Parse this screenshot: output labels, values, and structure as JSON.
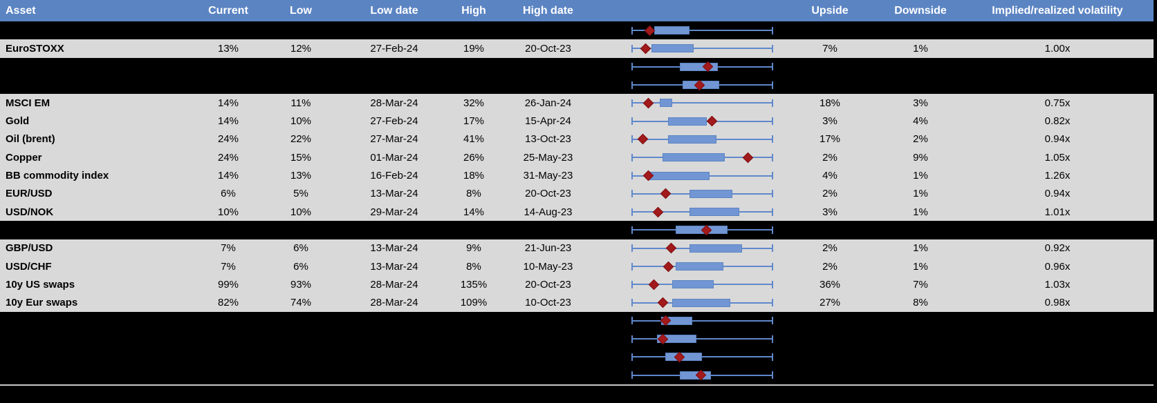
{
  "colors": {
    "header_bg": "#5b84c2",
    "header_text": "#ffffff",
    "row_bg": "#d9d9d9",
    "hidden_row_bg": "#000000",
    "box_fill": "#7296d3",
    "box_border": "#5b84c2",
    "whisker": "#5f88cc",
    "diamond": "#a21a1c",
    "diamond_border": "#7c1012",
    "divider": "#c8c8c8"
  },
  "chart_data": {
    "type": "table",
    "title": "Asset implied volatility: current vs 12m low/high with box-whisker range",
    "columns": [
      "Asset",
      "Current",
      "Low",
      "Low date",
      "High",
      "High date",
      "Upside",
      "Downside",
      "Implied/realized volatility"
    ],
    "boxplot_units": "relative position 0-1 along the whisker span (no numeric axis shown in image)",
    "rows": [
      {
        "kind": "hidden",
        "boxplot": {
          "whisker_low": 0,
          "box_q1": 0.16,
          "box_q3": 0.41,
          "whisker_high": 1,
          "marker": 0.13
        }
      },
      {
        "kind": "data",
        "asset": "EuroSTOXX",
        "current": "13%",
        "low": "12%",
        "low_date": "27-Feb-24",
        "high": "19%",
        "high_date": "20-Oct-23",
        "upside": "7%",
        "downside": "1%",
        "impl_real": "1.00x",
        "boxplot": {
          "whisker_low": 0,
          "box_q1": 0.14,
          "box_q3": 0.44,
          "whisker_high": 1,
          "marker": 0.1
        }
      },
      {
        "kind": "hidden",
        "boxplot": {
          "whisker_low": 0,
          "box_q1": 0.34,
          "box_q3": 0.61,
          "whisker_high": 1,
          "marker": 0.54
        }
      },
      {
        "kind": "hidden",
        "boxplot": {
          "whisker_low": 0,
          "box_q1": 0.36,
          "box_q3": 0.62,
          "whisker_high": 1,
          "marker": 0.48
        }
      },
      {
        "kind": "data",
        "asset": "MSCI EM",
        "current": "14%",
        "low": "11%",
        "low_date": "28-Mar-24",
        "high": "32%",
        "high_date": "26-Jan-24",
        "upside": "18%",
        "downside": "3%",
        "impl_real": "0.75x",
        "boxplot": {
          "whisker_low": 0,
          "box_q1": 0.2,
          "box_q3": 0.29,
          "whisker_high": 1,
          "marker": 0.12
        }
      },
      {
        "kind": "data",
        "asset": "Gold",
        "current": "14%",
        "low": "10%",
        "low_date": "27-Feb-24",
        "high": "17%",
        "high_date": "15-Apr-24",
        "upside": "3%",
        "downside": "4%",
        "impl_real": "0.82x",
        "boxplot": {
          "whisker_low": 0,
          "box_q1": 0.26,
          "box_q3": 0.53,
          "whisker_high": 1,
          "marker": 0.57
        }
      },
      {
        "kind": "data",
        "asset": "Oil (brent)",
        "current": "24%",
        "low": "22%",
        "low_date": "27-Mar-24",
        "high": "41%",
        "high_date": "13-Oct-23",
        "upside": "17%",
        "downside": "2%",
        "impl_real": "0.94x",
        "boxplot": {
          "whisker_low": 0,
          "box_q1": 0.26,
          "box_q3": 0.6,
          "whisker_high": 1,
          "marker": 0.08
        }
      },
      {
        "kind": "data",
        "asset": "Copper",
        "current": "24%",
        "low": "15%",
        "low_date": "01-Mar-24",
        "high": "26%",
        "high_date": "25-May-23",
        "upside": "2%",
        "downside": "9%",
        "impl_real": "1.05x",
        "boxplot": {
          "whisker_low": 0,
          "box_q1": 0.22,
          "box_q3": 0.66,
          "whisker_high": 1,
          "marker": 0.82
        }
      },
      {
        "kind": "data",
        "asset": "BB commodity index",
        "current": "14%",
        "low": "13%",
        "low_date": "16-Feb-24",
        "high": "18%",
        "high_date": "31-May-23",
        "upside": "4%",
        "downside": "1%",
        "impl_real": "1.26x",
        "boxplot": {
          "whisker_low": 0,
          "box_q1": 0.12,
          "box_q3": 0.55,
          "whisker_high": 1,
          "marker": 0.12
        }
      },
      {
        "kind": "data",
        "asset": "EUR/USD",
        "current": "6%",
        "low": "5%",
        "low_date": "13-Mar-24",
        "high": "8%",
        "high_date": "20-Oct-23",
        "upside": "2%",
        "downside": "1%",
        "impl_real": "0.94x",
        "boxplot": {
          "whisker_low": 0,
          "box_q1": 0.41,
          "box_q3": 0.71,
          "whisker_high": 1,
          "marker": 0.24
        }
      },
      {
        "kind": "data",
        "asset": "USD/NOK",
        "current": "10%",
        "low": "10%",
        "low_date": "29-Mar-24",
        "high": "14%",
        "high_date": "14-Aug-23",
        "upside": "3%",
        "downside": "1%",
        "impl_real": "1.01x",
        "boxplot": {
          "whisker_low": 0,
          "box_q1": 0.41,
          "box_q3": 0.76,
          "whisker_high": 1,
          "marker": 0.19
        }
      },
      {
        "kind": "hidden",
        "boxplot": {
          "whisker_low": 0,
          "box_q1": 0.31,
          "box_q3": 0.68,
          "whisker_high": 1,
          "marker": 0.53
        }
      },
      {
        "kind": "data",
        "asset": "GBP/USD",
        "current": "7%",
        "low": "6%",
        "low_date": "13-Mar-24",
        "high": "9%",
        "high_date": "21-Jun-23",
        "upside": "2%",
        "downside": "1%",
        "impl_real": "0.92x",
        "boxplot": {
          "whisker_low": 0,
          "box_q1": 0.41,
          "box_q3": 0.78,
          "whisker_high": 1,
          "marker": 0.28
        }
      },
      {
        "kind": "data",
        "asset": "USD/CHF",
        "current": "7%",
        "low": "6%",
        "low_date": "13-Mar-24",
        "high": "8%",
        "high_date": "10-May-23",
        "upside": "2%",
        "downside": "1%",
        "impl_real": "0.96x",
        "boxplot": {
          "whisker_low": 0,
          "box_q1": 0.31,
          "box_q3": 0.65,
          "whisker_high": 1,
          "marker": 0.26
        }
      },
      {
        "kind": "data",
        "asset": "10y US swaps",
        "current": "99%",
        "low": "93%",
        "low_date": "28-Mar-24",
        "high": "135%",
        "high_date": "20-Oct-23",
        "upside": "36%",
        "downside": "7%",
        "impl_real": "1.03x",
        "boxplot": {
          "whisker_low": 0,
          "box_q1": 0.29,
          "box_q3": 0.58,
          "whisker_high": 1,
          "marker": 0.16
        }
      },
      {
        "kind": "data",
        "asset": "10y Eur swaps",
        "current": "82%",
        "low": "74%",
        "low_date": "28-Mar-24",
        "high": "109%",
        "high_date": "10-Oct-23",
        "upside": "27%",
        "downside": "8%",
        "impl_real": "0.98x",
        "boxplot": {
          "whisker_low": 0,
          "box_q1": 0.29,
          "box_q3": 0.7,
          "whisker_high": 1,
          "marker": 0.22
        }
      },
      {
        "kind": "hidden",
        "boxplot": {
          "whisker_low": 0,
          "box_q1": 0.21,
          "box_q3": 0.43,
          "whisker_high": 1,
          "marker": 0.24
        }
      },
      {
        "kind": "hidden",
        "boxplot": {
          "whisker_low": 0,
          "box_q1": 0.18,
          "box_q3": 0.46,
          "whisker_high": 1,
          "marker": 0.22
        }
      },
      {
        "kind": "hidden",
        "boxplot": {
          "whisker_low": 0,
          "box_q1": 0.24,
          "box_q3": 0.5,
          "whisker_high": 1,
          "marker": 0.34
        }
      },
      {
        "kind": "hidden",
        "boxplot": {
          "whisker_low": 0,
          "box_q1": 0.34,
          "box_q3": 0.56,
          "whisker_high": 1,
          "marker": 0.49
        }
      }
    ]
  }
}
